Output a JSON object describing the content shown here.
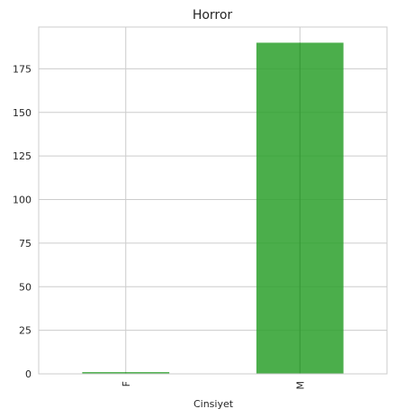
{
  "chart_data": {
    "type": "bar",
    "title": "Horror",
    "xlabel": "Cinsiyet",
    "ylabel": "",
    "categories": [
      "F",
      "M"
    ],
    "values": [
      1,
      190
    ],
    "ylim": [
      0,
      199
    ],
    "yticks": [
      0,
      25,
      50,
      75,
      100,
      125,
      150,
      175
    ],
    "grid": true,
    "bar_color": "#2ca02c",
    "x_tick_rotation": 90
  }
}
